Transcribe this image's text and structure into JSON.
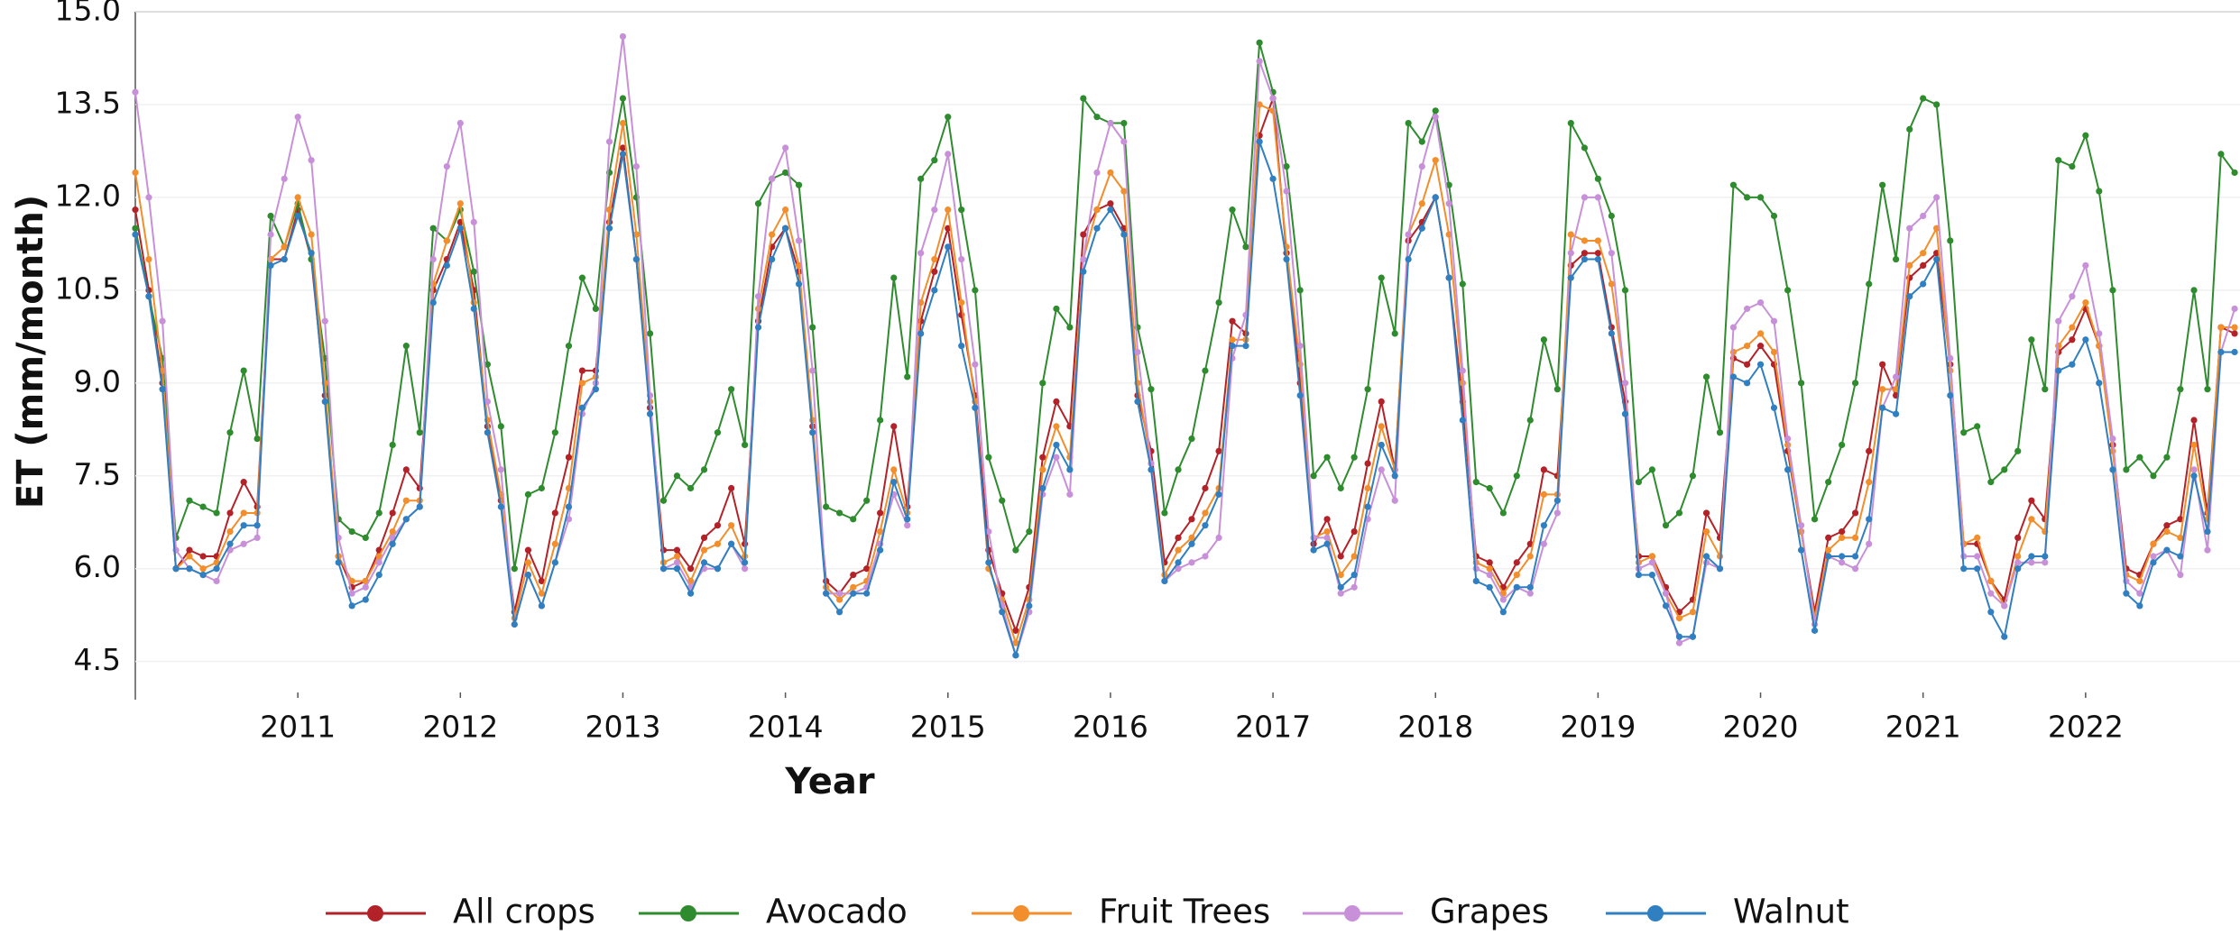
{
  "chart_data": {
    "type": "line",
    "xlabel": "Year",
    "ylabel": "ET (mm/month)",
    "x": [
      2010,
      2010.083,
      2010.167,
      2010.25,
      2010.333,
      2010.417,
      2010.5,
      2010.583,
      2010.667,
      2010.75,
      2010.833,
      2010.917,
      2011,
      2011.083,
      2011.167,
      2011.25,
      2011.333,
      2011.417,
      2011.5,
      2011.583,
      2011.667,
      2011.75,
      2011.833,
      2011.917,
      2012,
      2012.083,
      2012.167,
      2012.25,
      2012.333,
      2012.417,
      2012.5,
      2012.583,
      2012.667,
      2012.75,
      2012.833,
      2012.917,
      2013,
      2013.083,
      2013.167,
      2013.25,
      2013.333,
      2013.417,
      2013.5,
      2013.583,
      2013.667,
      2013.75,
      2013.833,
      2013.917,
      2014,
      2014.083,
      2014.167,
      2014.25,
      2014.333,
      2014.417,
      2014.5,
      2014.583,
      2014.667,
      2014.75,
      2014.833,
      2014.917,
      2015,
      2015.083,
      2015.167,
      2015.25,
      2015.333,
      2015.417,
      2015.5,
      2015.583,
      2015.667,
      2015.75,
      2015.833,
      2015.917,
      2016,
      2016.083,
      2016.167,
      2016.25,
      2016.333,
      2016.417,
      2016.5,
      2016.583,
      2016.667,
      2016.75,
      2016.833,
      2016.917,
      2017,
      2017.083,
      2017.167,
      2017.25,
      2017.333,
      2017.417,
      2017.5,
      2017.583,
      2017.667,
      2017.75,
      2017.833,
      2017.917,
      2018,
      2018.083,
      2018.167,
      2018.25,
      2018.333,
      2018.417,
      2018.5,
      2018.583,
      2018.667,
      2018.75,
      2018.833,
      2018.917,
      2019,
      2019.083,
      2019.167,
      2019.25,
      2019.333,
      2019.417,
      2019.5,
      2019.583,
      2019.667,
      2019.75,
      2019.833,
      2019.917,
      2020,
      2020.083,
      2020.167,
      2020.25,
      2020.333,
      2020.417,
      2020.5,
      2020.583,
      2020.667,
      2020.75,
      2020.833,
      2020.917,
      2021,
      2021.083,
      2021.167,
      2021.25,
      2021.333,
      2021.417,
      2021.5,
      2021.583,
      2021.667,
      2021.75,
      2021.833,
      2021.917,
      2022,
      2022.083,
      2022.167,
      2022.25,
      2022.333,
      2022.417,
      2022.5,
      2022.583,
      2022.667,
      2022.75,
      2022.833,
      2022.917
    ],
    "series": [
      {
        "name": "All crops",
        "color": "#b22228",
        "values": [
          11.8,
          10.5,
          9.0,
          6.0,
          6.3,
          6.2,
          6.2,
          6.9,
          7.4,
          7.0,
          11.0,
          11.0,
          11.8,
          11.0,
          8.8,
          6.2,
          5.7,
          5.8,
          6.3,
          6.9,
          7.6,
          7.3,
          10.5,
          11.0,
          11.6,
          10.5,
          8.3,
          7.1,
          5.3,
          6.3,
          5.8,
          6.9,
          7.8,
          9.2,
          9.2,
          11.6,
          12.8,
          11.0,
          8.6,
          6.3,
          6.3,
          6.0,
          6.5,
          6.7,
          7.3,
          6.4,
          10.0,
          11.2,
          11.5,
          10.8,
          8.3,
          5.8,
          5.6,
          5.9,
          6.0,
          6.9,
          8.3,
          7.0,
          10.0,
          10.8,
          11.5,
          10.1,
          8.8,
          6.3,
          5.6,
          5.0,
          5.7,
          7.8,
          8.7,
          8.3,
          11.4,
          11.8,
          11.9,
          11.5,
          8.8,
          7.9,
          6.1,
          6.5,
          6.8,
          7.3,
          7.9,
          10.0,
          9.8,
          13.0,
          13.6,
          11.1,
          9.0,
          6.4,
          6.8,
          6.2,
          6.6,
          7.7,
          8.7,
          7.6,
          11.3,
          11.6,
          12.0,
          10.7,
          8.7,
          6.2,
          6.1,
          5.7,
          6.1,
          6.4,
          7.6,
          7.5,
          10.9,
          11.1,
          11.1,
          9.9,
          8.7,
          6.2,
          6.2,
          5.7,
          5.3,
          5.5,
          6.9,
          6.5,
          9.4,
          9.3,
          9.6,
          9.3,
          7.9,
          6.6,
          5.3,
          6.5,
          6.6,
          6.9,
          7.9,
          9.3,
          8.8,
          10.7,
          10.9,
          11.1,
          9.3,
          6.4,
          6.4,
          5.8,
          5.5,
          6.5,
          7.1,
          6.8,
          9.5,
          9.7,
          10.2,
          9.6,
          8.0,
          6.0,
          5.9,
          6.4,
          6.7,
          6.8,
          8.4,
          6.9,
          9.9,
          9.8
        ]
      },
      {
        "name": "Avocado",
        "color": "#2e8b2e",
        "values": [
          11.5,
          10.4,
          9.4,
          6.5,
          7.1,
          7.0,
          6.9,
          8.2,
          9.2,
          8.1,
          11.7,
          11.2,
          11.9,
          11.0,
          9.4,
          6.8,
          6.6,
          6.5,
          6.9,
          8.0,
          9.6,
          8.2,
          11.5,
          11.3,
          11.8,
          10.8,
          9.3,
          8.3,
          6.0,
          7.2,
          7.3,
          8.2,
          9.6,
          10.7,
          10.2,
          12.4,
          13.6,
          12.0,
          9.8,
          7.1,
          7.5,
          7.3,
          7.6,
          8.2,
          8.9,
          8.0,
          11.9,
          12.3,
          12.4,
          12.2,
          9.9,
          7.0,
          6.9,
          6.8,
          7.1,
          8.4,
          10.7,
          9.1,
          12.3,
          12.6,
          13.3,
          11.8,
          10.5,
          7.8,
          7.1,
          6.3,
          6.6,
          9.0,
          10.2,
          9.9,
          13.6,
          13.3,
          13.2,
          13.2,
          9.9,
          8.9,
          6.9,
          7.6,
          8.1,
          9.2,
          10.3,
          11.8,
          11.2,
          14.5,
          13.7,
          12.5,
          10.5,
          7.5,
          7.8,
          7.3,
          7.8,
          8.9,
          10.7,
          9.8,
          13.2,
          12.9,
          13.4,
          12.2,
          10.6,
          7.4,
          7.3,
          6.9,
          7.5,
          8.4,
          9.7,
          8.9,
          13.2,
          12.8,
          12.3,
          11.7,
          10.5,
          7.4,
          7.6,
          6.7,
          6.9,
          7.5,
          9.1,
          8.2,
          12.2,
          12.0,
          12.0,
          11.7,
          10.5,
          9.0,
          6.8,
          7.4,
          8.0,
          9.0,
          10.6,
          12.2,
          11.0,
          13.1,
          13.6,
          13.5,
          11.3,
          8.2,
          8.3,
          7.4,
          7.6,
          7.9,
          9.7,
          8.9,
          12.6,
          12.5,
          13.0,
          12.1,
          10.5,
          7.6,
          7.8,
          7.5,
          7.8,
          8.9,
          10.5,
          8.9,
          12.7,
          12.4
        ]
      },
      {
        "name": "Fruit Trees",
        "color": "#f28e2b",
        "values": [
          12.4,
          11.0,
          9.2,
          6.0,
          6.2,
          6.0,
          6.1,
          6.6,
          6.9,
          6.9,
          11.0,
          11.2,
          12.0,
          11.4,
          9.0,
          6.2,
          5.8,
          5.8,
          6.2,
          6.6,
          7.1,
          7.1,
          10.6,
          11.3,
          11.9,
          10.3,
          8.4,
          7.2,
          5.2,
          6.1,
          5.6,
          6.4,
          7.3,
          9.0,
          9.1,
          11.8,
          13.2,
          11.4,
          8.7,
          6.1,
          6.2,
          5.8,
          6.3,
          6.4,
          6.7,
          6.2,
          10.2,
          11.4,
          11.8,
          10.9,
          8.4,
          5.7,
          5.5,
          5.7,
          5.8,
          6.6,
          7.6,
          6.9,
          10.3,
          11.0,
          11.8,
          10.3,
          8.7,
          6.0,
          5.5,
          4.8,
          5.5,
          7.6,
          8.3,
          7.8,
          11.0,
          11.8,
          12.4,
          12.1,
          9.0,
          7.7,
          5.9,
          6.3,
          6.5,
          6.9,
          7.3,
          9.7,
          9.7,
          13.5,
          13.4,
          11.2,
          9.3,
          6.5,
          6.6,
          5.9,
          6.2,
          7.3,
          8.3,
          7.6,
          11.4,
          11.9,
          12.6,
          11.4,
          9.0,
          6.1,
          6.0,
          5.6,
          5.9,
          6.2,
          7.2,
          7.2,
          11.4,
          11.3,
          11.3,
          10.6,
          9.0,
          6.1,
          6.2,
          5.6,
          5.2,
          5.3,
          6.6,
          6.2,
          9.5,
          9.6,
          9.8,
          9.5,
          8.0,
          6.6,
          5.2,
          6.3,
          6.5,
          6.5,
          7.4,
          8.9,
          8.9,
          10.9,
          11.1,
          11.5,
          9.2,
          6.4,
          6.5,
          5.8,
          5.4,
          6.2,
          6.8,
          6.6,
          9.6,
          9.9,
          10.3,
          9.6,
          7.9,
          5.9,
          5.8,
          6.4,
          6.6,
          6.5,
          8.0,
          6.8,
          9.9,
          9.9
        ]
      },
      {
        "name": "Grapes",
        "color": "#c890d8",
        "values": [
          13.7,
          12.0,
          10.0,
          6.3,
          6.0,
          5.9,
          5.8,
          6.3,
          6.4,
          6.5,
          11.4,
          12.3,
          13.3,
          12.6,
          10.0,
          6.5,
          5.6,
          5.7,
          6.1,
          6.5,
          6.8,
          7.0,
          11.0,
          12.5,
          13.2,
          11.6,
          8.7,
          7.6,
          5.1,
          5.9,
          5.4,
          6.1,
          6.8,
          8.5,
          9.0,
          12.9,
          14.6,
          12.5,
          8.8,
          6.0,
          6.1,
          5.7,
          6.0,
          6.0,
          6.4,
          6.0,
          10.4,
          12.3,
          12.8,
          11.3,
          9.2,
          5.6,
          5.6,
          5.6,
          5.7,
          6.4,
          7.2,
          6.7,
          11.1,
          11.8,
          12.7,
          11.0,
          9.3,
          6.6,
          5.4,
          4.6,
          5.3,
          7.2,
          7.8,
          7.2,
          11.0,
          12.4,
          13.2,
          12.9,
          9.5,
          7.7,
          5.8,
          6.0,
          6.1,
          6.2,
          6.5,
          9.4,
          10.1,
          14.2,
          13.6,
          12.1,
          9.6,
          6.5,
          6.5,
          5.6,
          5.7,
          6.8,
          7.6,
          7.1,
          11.4,
          12.5,
          13.3,
          11.9,
          9.2,
          6.0,
          5.9,
          5.5,
          5.7,
          5.6,
          6.4,
          6.9,
          11.1,
          12.0,
          12.0,
          11.1,
          9.0,
          6.0,
          6.1,
          5.6,
          4.8,
          4.9,
          6.1,
          6.0,
          9.9,
          10.2,
          10.3,
          10.0,
          8.1,
          6.7,
          5.1,
          6.2,
          6.1,
          6.0,
          6.4,
          8.6,
          9.1,
          11.5,
          11.7,
          12.0,
          9.4,
          6.2,
          6.2,
          5.6,
          5.4,
          6.1,
          6.1,
          6.1,
          10.0,
          10.4,
          10.9,
          9.8,
          8.1,
          5.8,
          5.6,
          6.2,
          6.3,
          5.9,
          7.6,
          6.3,
          9.5,
          10.2
        ]
      },
      {
        "name": "Walnut",
        "color": "#2f7fc1",
        "values": [
          11.4,
          10.4,
          8.9,
          6.0,
          6.0,
          5.9,
          6.0,
          6.4,
          6.7,
          6.7,
          10.9,
          11.0,
          11.7,
          11.1,
          8.7,
          6.1,
          5.4,
          5.5,
          5.9,
          6.4,
          6.8,
          7.0,
          10.3,
          10.9,
          11.5,
          10.2,
          8.2,
          7.0,
          5.1,
          5.9,
          5.4,
          6.1,
          7.0,
          8.6,
          8.9,
          11.5,
          12.7,
          11.0,
          8.5,
          6.0,
          6.0,
          5.6,
          6.1,
          6.0,
          6.4,
          6.1,
          9.9,
          11.0,
          11.5,
          10.6,
          8.2,
          5.6,
          5.3,
          5.6,
          5.6,
          6.3,
          7.4,
          6.8,
          9.8,
          10.5,
          11.2,
          9.6,
          8.6,
          6.1,
          5.3,
          4.6,
          5.4,
          7.3,
          8.0,
          7.6,
          10.8,
          11.5,
          11.8,
          11.4,
          8.7,
          7.6,
          5.8,
          6.1,
          6.4,
          6.7,
          7.2,
          9.6,
          9.6,
          12.9,
          12.3,
          11.0,
          8.8,
          6.3,
          6.4,
          5.7,
          5.9,
          7.0,
          8.0,
          7.5,
          11.0,
          11.5,
          12.0,
          10.7,
          8.4,
          5.8,
          5.7,
          5.3,
          5.7,
          5.7,
          6.7,
          7.1,
          10.7,
          11.0,
          11.0,
          9.8,
          8.5,
          5.9,
          5.9,
          5.4,
          4.9,
          4.9,
          6.2,
          6.0,
          9.1,
          9.0,
          9.3,
          8.6,
          7.6,
          6.3,
          5.0,
          6.2,
          6.2,
          6.2,
          6.8,
          8.6,
          8.5,
          10.4,
          10.6,
          11.0,
          8.8,
          6.0,
          6.0,
          5.3,
          4.9,
          6.0,
          6.2,
          6.2,
          9.2,
          9.3,
          9.7,
          9.0,
          7.6,
          5.6,
          5.4,
          6.1,
          6.3,
          6.2,
          7.5,
          6.6,
          9.5,
          9.5
        ]
      }
    ],
    "xlim": [
      2010,
      2022.95
    ],
    "xticks": [
      2011,
      2012,
      2013,
      2014,
      2015,
      2016,
      2017,
      2018,
      2019,
      2020,
      2021,
      2022
    ],
    "ylim": [
      4.0,
      15.0
    ],
    "yticks": [
      4.5,
      {
        "value": 6,
        "label": "6.0"
      },
      7.5,
      {
        "value": 9,
        "label": "9.0"
      },
      10.5,
      {
        "value": 12,
        "label": "12.0"
      },
      13.5,
      {
        "value": 15,
        "label": "15.0"
      }
    ],
    "grid": true,
    "legend": "bottom"
  }
}
